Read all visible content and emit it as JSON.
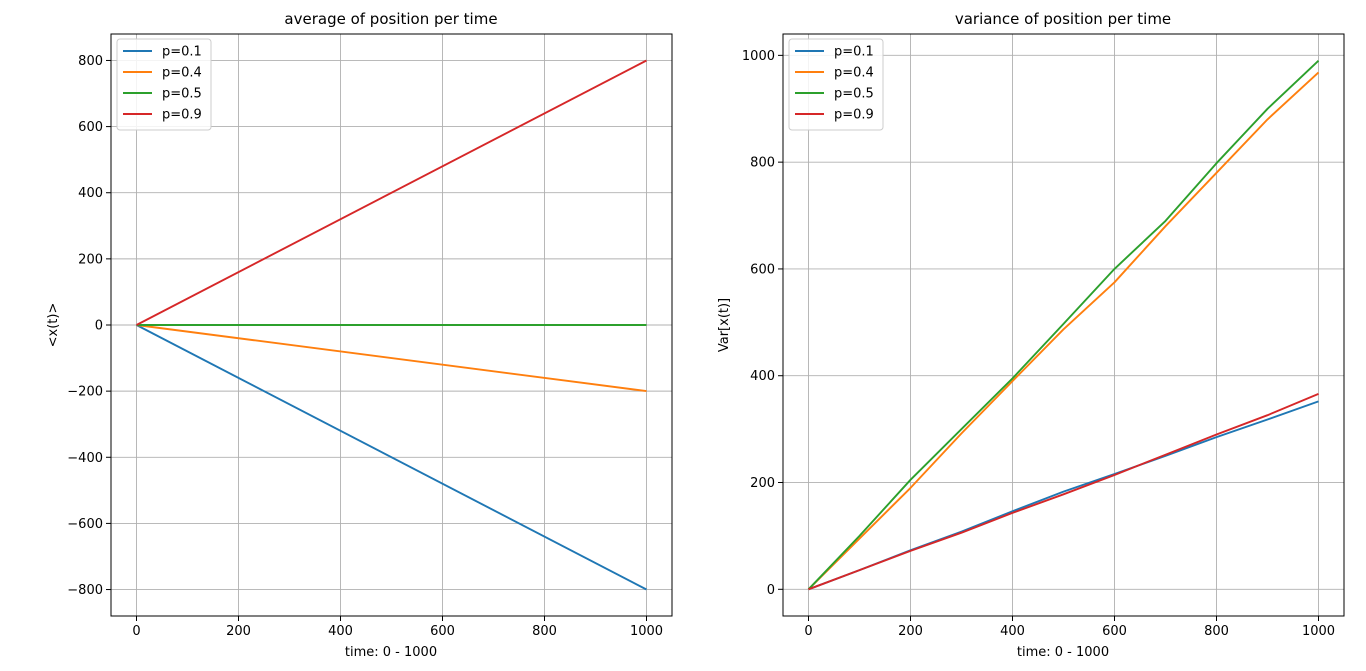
{
  "chart_data": [
    {
      "type": "line",
      "title": "average of position per time",
      "xlabel": "time: 0 - 1000",
      "ylabel": "<x(t)>",
      "xlim": [
        -50,
        1050
      ],
      "ylim": [
        -880,
        880
      ],
      "xticks": [
        0,
        200,
        400,
        600,
        800,
        1000
      ],
      "xtick_labels": [
        "0",
        "200",
        "400",
        "600",
        "800",
        "1000"
      ],
      "yticks": [
        -800,
        -600,
        -400,
        -200,
        0,
        200,
        400,
        600,
        800
      ],
      "ytick_labels": [
        "−800",
        "−600",
        "−400",
        "−200",
        "0",
        "200",
        "400",
        "600",
        "800"
      ],
      "grid": true,
      "legend_position": "top-left",
      "series": [
        {
          "name": "p=0.1",
          "color": "#1f77b4",
          "x": [
            0,
            1000
          ],
          "y": [
            0,
            -800
          ]
        },
        {
          "name": "p=0.4",
          "color": "#ff7f0e",
          "x": [
            0,
            1000
          ],
          "y": [
            0,
            -200
          ]
        },
        {
          "name": "p=0.5",
          "color": "#2ca02c",
          "x": [
            0,
            1000
          ],
          "y": [
            0,
            0
          ]
        },
        {
          "name": "p=0.9",
          "color": "#d62728",
          "x": [
            0,
            1000
          ],
          "y": [
            0,
            800
          ]
        }
      ]
    },
    {
      "type": "line",
      "title": "variance of position per time",
      "xlabel": "time: 0 - 1000",
      "ylabel": "Var[x(t)]",
      "xlim": [
        -50,
        1050
      ],
      "ylim": [
        -50,
        1040
      ],
      "xticks": [
        0,
        200,
        400,
        600,
        800,
        1000
      ],
      "xtick_labels": [
        "0",
        "200",
        "400",
        "600",
        "800",
        "1000"
      ],
      "yticks": [
        0,
        200,
        400,
        600,
        800,
        1000
      ],
      "ytick_labels": [
        "0",
        "200",
        "400",
        "600",
        "800",
        "1000"
      ],
      "grid": true,
      "legend_position": "top-left",
      "series": [
        {
          "name": "p=0.1",
          "color": "#1f77b4",
          "x": [
            0,
            100,
            200,
            300,
            400,
            500,
            600,
            700,
            800,
            900,
            1000
          ],
          "y": [
            0,
            36,
            73,
            108,
            146,
            183,
            216,
            250,
            285,
            318,
            352
          ]
        },
        {
          "name": "p=0.4",
          "color": "#ff7f0e",
          "x": [
            0,
            100,
            200,
            300,
            400,
            500,
            600,
            700,
            800,
            900,
            1000
          ],
          "y": [
            0,
            95,
            190,
            292,
            390,
            487,
            575,
            680,
            780,
            880,
            968
          ]
        },
        {
          "name": "p=0.5",
          "color": "#2ca02c",
          "x": [
            0,
            100,
            200,
            300,
            400,
            500,
            600,
            700,
            800,
            900,
            1000
          ],
          "y": [
            0,
            100,
            205,
            300,
            395,
            497,
            600,
            690,
            798,
            900,
            990
          ]
        },
        {
          "name": "p=0.9",
          "color": "#d62728",
          "x": [
            0,
            100,
            200,
            300,
            400,
            500,
            600,
            700,
            800,
            900,
            1000
          ],
          "y": [
            0,
            36,
            72,
            106,
            143,
            178,
            214,
            252,
            290,
            326,
            366
          ]
        }
      ]
    }
  ]
}
